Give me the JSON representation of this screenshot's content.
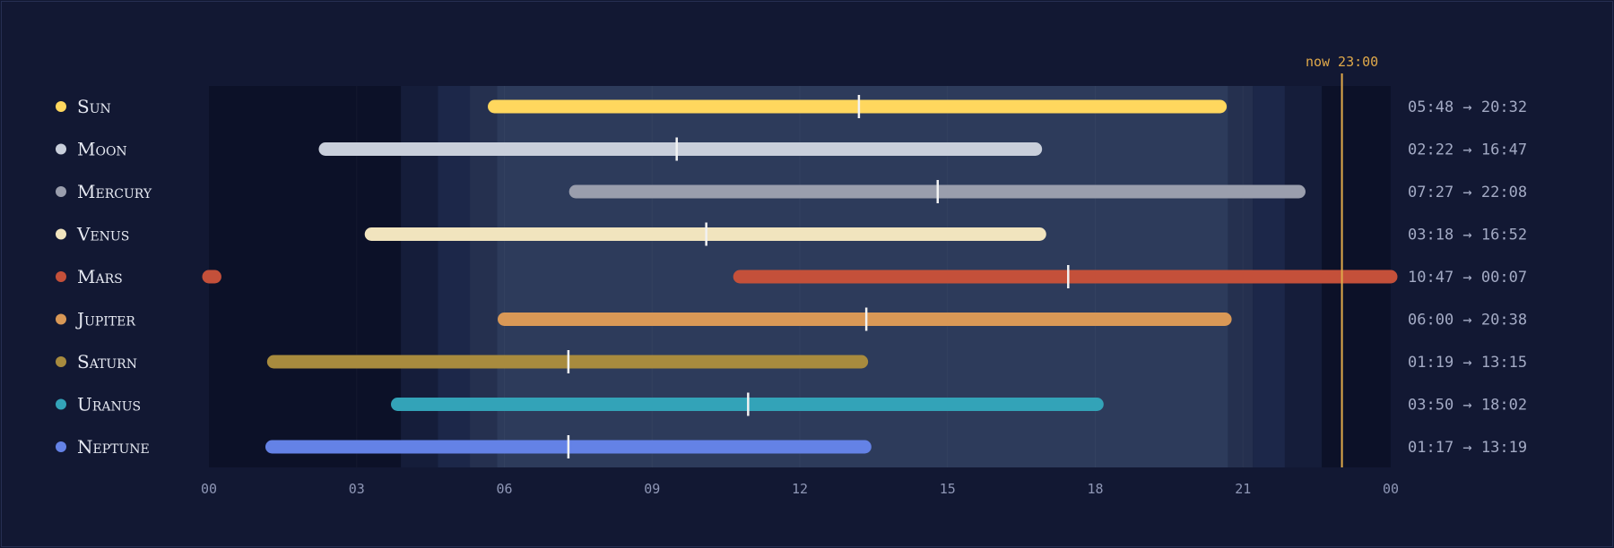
{
  "chart_data": {
    "type": "timeline",
    "x_unit": "hour of day",
    "xlim": [
      0,
      24
    ],
    "tick_labels": [
      "00",
      "03",
      "06",
      "09",
      "12",
      "15",
      "18",
      "21",
      "00"
    ],
    "now": {
      "label": "now 23:00",
      "hour": 23.0,
      "color": "#e0a94a"
    },
    "daylight_bands": [
      {
        "from": 0.0,
        "to": 3.9,
        "level": "night"
      },
      {
        "from": 3.9,
        "to": 4.65,
        "level": "astronomical"
      },
      {
        "from": 4.65,
        "to": 5.3,
        "level": "nautical"
      },
      {
        "from": 5.3,
        "to": 5.85,
        "level": "civil"
      },
      {
        "from": 5.85,
        "to": 20.7,
        "level": "day"
      },
      {
        "from": 20.7,
        "to": 21.2,
        "level": "civil"
      },
      {
        "from": 21.2,
        "to": 21.85,
        "level": "nautical"
      },
      {
        "from": 21.85,
        "to": 22.6,
        "level": "astronomical"
      },
      {
        "from": 22.6,
        "to": 24.0,
        "level": "night"
      }
    ],
    "band_colors": {
      "night": "#0c1128",
      "astronomical": "#151d3a",
      "nautical": "#1c2749",
      "civil": "#25304f",
      "day": "#2d3b5b"
    },
    "series": [
      {
        "name": "Sun",
        "color": "#ffd75e",
        "rise": "05:48",
        "set": "20:32",
        "rise_h": 5.8,
        "set_h": 20.533,
        "transit_h": 13.2,
        "label": "05:48 → 20:32"
      },
      {
        "name": "Moon",
        "color": "#c9cfdb",
        "rise": "02:22",
        "set": "16:47",
        "rise_h": 2.367,
        "set_h": 16.783,
        "transit_h": 9.5,
        "label": "02:22 → 16:47"
      },
      {
        "name": "Mercury",
        "color": "#9a9ead",
        "rise": "07:27",
        "set": "22:08",
        "rise_h": 7.45,
        "set_h": 22.133,
        "transit_h": 14.8,
        "label": "07:27 → 22:08"
      },
      {
        "name": "Venus",
        "color": "#f1e4be",
        "rise": "03:18",
        "set": "16:52",
        "rise_h": 3.3,
        "set_h": 16.867,
        "transit_h": 10.1,
        "label": "03:18 → 16:52"
      },
      {
        "name": "Mars",
        "color": "#c4503a",
        "rise": "10:47",
        "set": "00:07",
        "rise_h": 10.783,
        "set_h": 0.117,
        "transit_h": 17.45,
        "label": "10:47 → 00:07"
      },
      {
        "name": "Jupiter",
        "color": "#d99856",
        "rise": "06:00",
        "set": "20:38",
        "rise_h": 6.0,
        "set_h": 20.633,
        "transit_h": 13.35,
        "label": "06:00 → 20:38"
      },
      {
        "name": "Saturn",
        "color": "#a88b3e",
        "rise": "01:19",
        "set": "13:15",
        "rise_h": 1.317,
        "set_h": 13.25,
        "transit_h": 7.3,
        "label": "01:19 → 13:15"
      },
      {
        "name": "Uranus",
        "color": "#33a3b8",
        "rise": "03:50",
        "set": "18:02",
        "rise_h": 3.833,
        "set_h": 18.033,
        "transit_h": 10.95,
        "label": "03:50 → 18:02"
      },
      {
        "name": "Neptune",
        "color": "#6482e6",
        "rise": "01:17",
        "set": "13:19",
        "rise_h": 1.283,
        "set_h": 13.317,
        "transit_h": 7.3,
        "label": "01:17 → 13:19"
      }
    ]
  }
}
